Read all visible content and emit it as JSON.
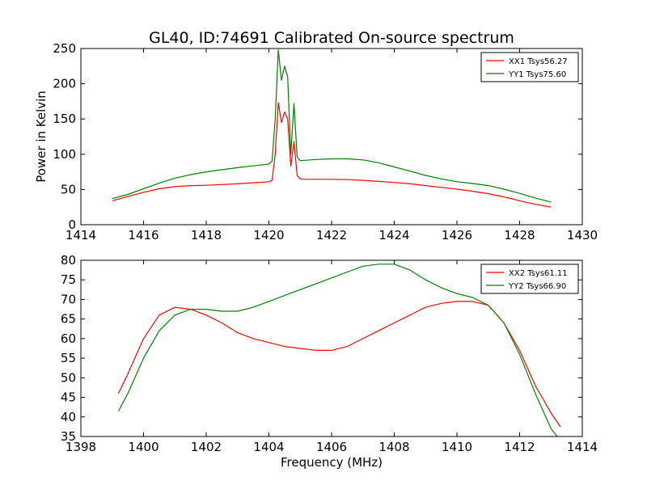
{
  "figure": {
    "title": "GL40, ID:74691 Calibrated On-source spectrum"
  },
  "chart_data": [
    {
      "type": "line",
      "title": "GL40, ID:74691 Calibrated On-source spectrum",
      "xlabel": "",
      "ylabel": "Power in Kelvin",
      "xlim": [
        1414,
        1430
      ],
      "ylim": [
        0,
        250
      ],
      "xticks": [
        1414,
        1416,
        1418,
        1420,
        1422,
        1424,
        1426,
        1428,
        1430
      ],
      "yticks": [
        0,
        50,
        100,
        150,
        200,
        250
      ],
      "grid": false,
      "legend_position": "top-right",
      "series": [
        {
          "name": "XX1 Tsys56.27",
          "color": "#ff0000",
          "x": [
            1415.0,
            1415.5,
            1416.0,
            1416.5,
            1417.0,
            1417.5,
            1418.0,
            1418.5,
            1419.0,
            1419.5,
            1420.0,
            1420.1,
            1420.2,
            1420.3,
            1420.4,
            1420.5,
            1420.6,
            1420.7,
            1420.8,
            1420.9,
            1421.0,
            1421.2,
            1421.5,
            1422.0,
            1422.5,
            1423.0,
            1423.5,
            1424.0,
            1424.5,
            1425.0,
            1425.5,
            1426.0,
            1426.5,
            1427.0,
            1427.5,
            1428.0,
            1428.5,
            1429.0
          ],
          "y": [
            34,
            40,
            46,
            51,
            54,
            55.5,
            56,
            57,
            58,
            59.5,
            61,
            63,
            100,
            173,
            145,
            160,
            150,
            83,
            118,
            70,
            65,
            64.5,
            64.5,
            64.5,
            64,
            63,
            61.5,
            60,
            58,
            55.5,
            53,
            50.5,
            47.5,
            44,
            39.5,
            34,
            29,
            25
          ]
        },
        {
          "name": "YY1 Tsys75.60",
          "color": "#008000",
          "x": [
            1415.0,
            1415.5,
            1416.0,
            1416.5,
            1417.0,
            1417.5,
            1418.0,
            1418.5,
            1419.0,
            1419.5,
            1420.0,
            1420.1,
            1420.2,
            1420.3,
            1420.4,
            1420.5,
            1420.6,
            1420.7,
            1420.8,
            1420.9,
            1421.0,
            1421.2,
            1421.5,
            1422.0,
            1422.5,
            1423.0,
            1423.5,
            1424.0,
            1424.5,
            1425.0,
            1425.5,
            1426.0,
            1426.5,
            1427.0,
            1427.5,
            1428.0,
            1428.5,
            1429.0
          ],
          "y": [
            37,
            43,
            51,
            59,
            66,
            71,
            75,
            78,
            81,
            83.5,
            86,
            90,
            150,
            248,
            205,
            225,
            210,
            100,
            172,
            96,
            91,
            91.5,
            92.5,
            93.5,
            93.5,
            92,
            88,
            82,
            76,
            70,
            65,
            61,
            58.5,
            55.5,
            50.5,
            44.5,
            38,
            32
          ]
        }
      ]
    },
    {
      "type": "line",
      "title": "",
      "xlabel": "Frequency (MHz)",
      "ylabel": "",
      "xlim": [
        1398,
        1414
      ],
      "ylim": [
        35,
        80
      ],
      "xticks": [
        1398,
        1400,
        1402,
        1404,
        1406,
        1408,
        1410,
        1412,
        1414
      ],
      "yticks": [
        35,
        40,
        45,
        50,
        55,
        60,
        65,
        70,
        75,
        80
      ],
      "grid": false,
      "legend_position": "top-right",
      "series": [
        {
          "name": "XX2 Tsys61.11",
          "color": "#ff0000",
          "x": [
            1399.2,
            1399.5,
            1400.0,
            1400.5,
            1401.0,
            1401.5,
            1402.0,
            1402.5,
            1403.0,
            1403.5,
            1404.0,
            1404.5,
            1405.0,
            1405.5,
            1406.0,
            1406.5,
            1407.0,
            1407.5,
            1408.0,
            1408.5,
            1409.0,
            1409.5,
            1410.0,
            1410.5,
            1411.0,
            1411.5,
            1412.0,
            1412.5,
            1413.0,
            1413.3
          ],
          "y": [
            46,
            51,
            60,
            66,
            68,
            67.5,
            66,
            64,
            61.5,
            60,
            59,
            58,
            57.5,
            57,
            57,
            58,
            60,
            62,
            64,
            66,
            68,
            69,
            69.5,
            69.5,
            68.5,
            64,
            57,
            48,
            41,
            37.5
          ]
        },
        {
          "name": "YY2 Tsys66.90",
          "color": "#008000",
          "x": [
            1399.2,
            1399.5,
            1400.0,
            1400.5,
            1401.0,
            1401.5,
            1402.0,
            1402.5,
            1403.0,
            1403.5,
            1404.0,
            1404.5,
            1405.0,
            1405.5,
            1406.0,
            1406.5,
            1407.0,
            1407.5,
            1408.0,
            1408.5,
            1409.0,
            1409.5,
            1410.0,
            1410.5,
            1411.0,
            1411.5,
            1412.0,
            1412.5,
            1413.0,
            1413.2
          ],
          "y": [
            41.5,
            46,
            55,
            62,
            66,
            67.5,
            67.5,
            67,
            67,
            68,
            69.5,
            71,
            72.5,
            74,
            75.5,
            77,
            78.5,
            79,
            79,
            77.5,
            75,
            73,
            71.5,
            70.5,
            68.5,
            64,
            56,
            46,
            37,
            35
          ]
        }
      ]
    }
  ]
}
